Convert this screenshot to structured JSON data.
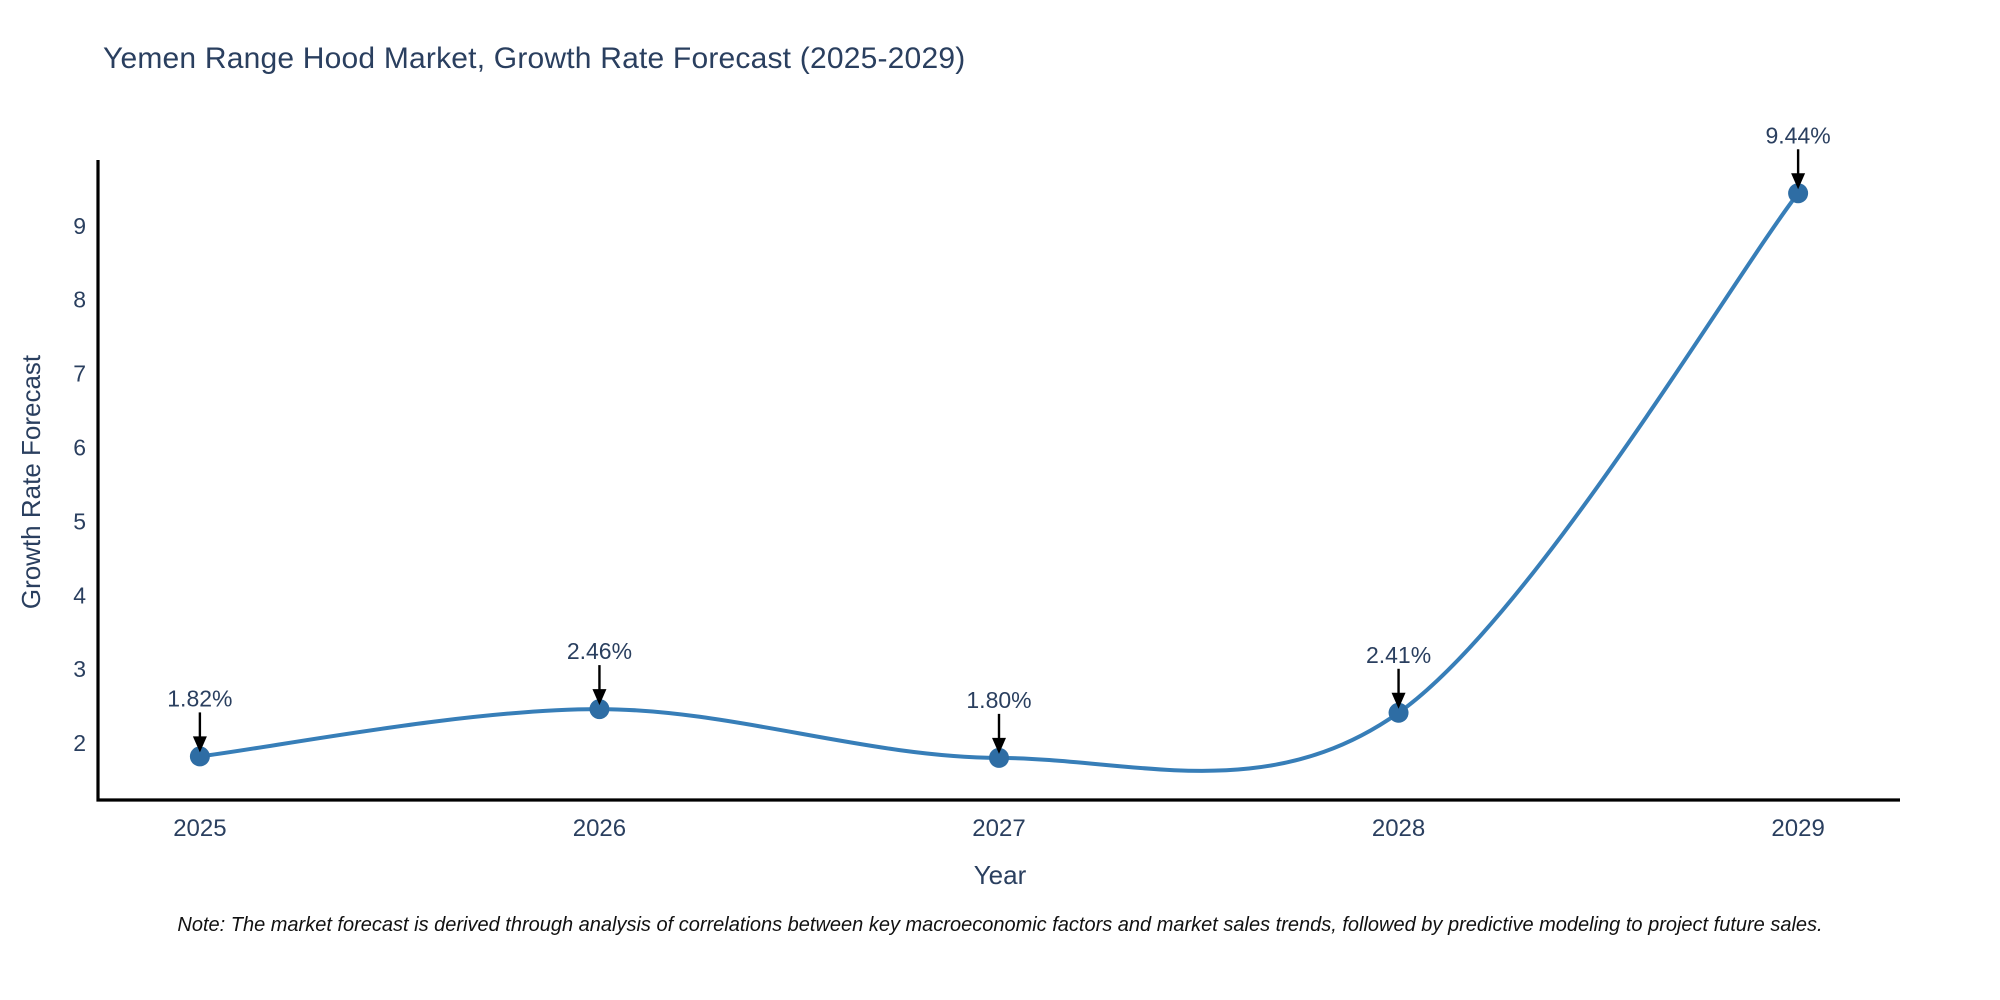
{
  "note": "Note: The market forecast is derived through analysis of correlations between key macroeconomic factors and market sales trends, followed by predictive modeling to project future sales.",
  "chart_data": {
    "type": "line",
    "line_shape": "spline",
    "title": "Yemen Range Hood Market, Growth Rate Forecast (2025-2029)",
    "xlabel": "Year",
    "ylabel": "Growth Rate Forecast",
    "x": [
      2025,
      2026,
      2027,
      2028,
      2029
    ],
    "series": [
      {
        "name": "Growth Rate Forecast",
        "values": [
          1.82,
          2.46,
          1.8,
          2.41,
          9.44
        ]
      }
    ],
    "point_labels": [
      "1.82%",
      "2.46%",
      "1.80%",
      "2.41%",
      "9.44%"
    ],
    "xticks": [
      "2025",
      "2026",
      "2027",
      "2028",
      "2029"
    ],
    "yticks": [
      2,
      3,
      4,
      5,
      6,
      7,
      8,
      9
    ],
    "xlim": [
      2024.745,
      2029.255
    ],
    "ylim": [
      1.23,
      9.89
    ],
    "grid": false,
    "legend": "none",
    "annotation_style": "value label with downward black arrow onto each point",
    "colors": {
      "line": "#377eb8",
      "marker": "#2e6da4",
      "axis": "#000000",
      "tick_text": "#2a3f5f",
      "annotation_text": "#2a3f5f",
      "annotation_arrow": "#000000"
    }
  }
}
